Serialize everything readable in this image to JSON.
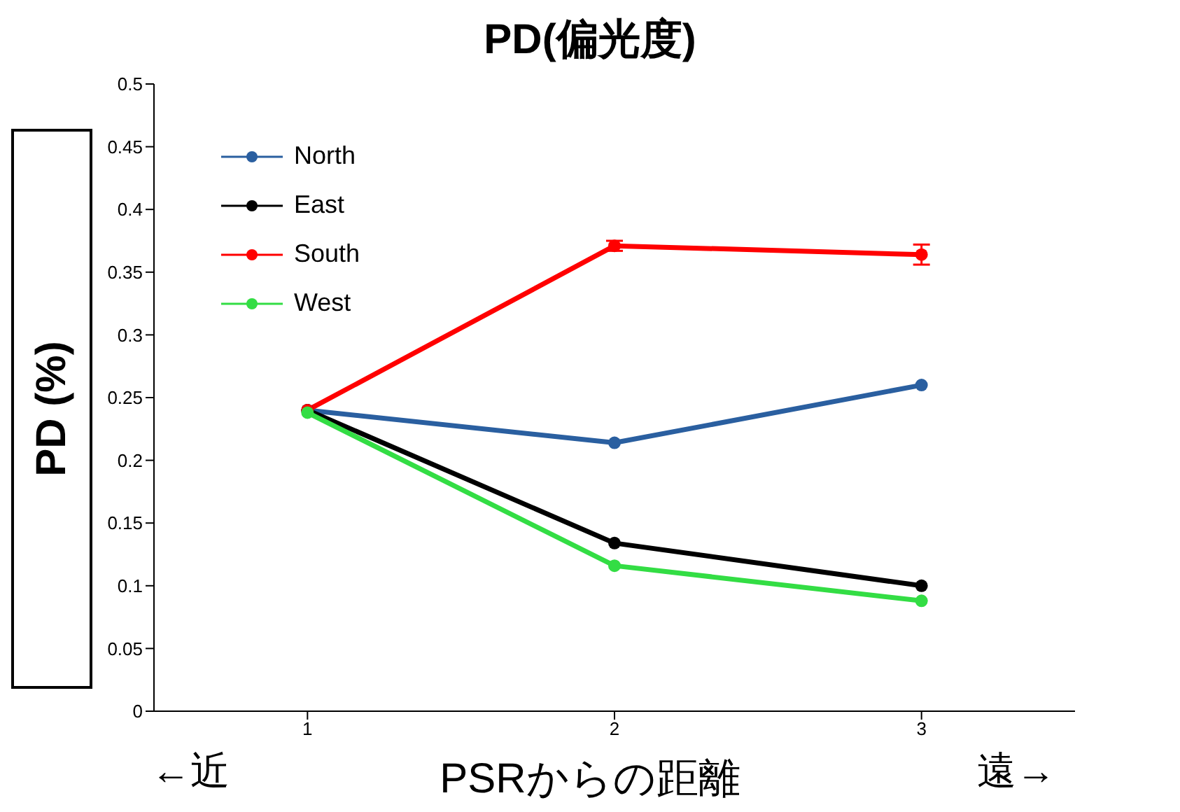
{
  "chart_data": {
    "type": "line",
    "title": "PD(偏光度)",
    "xlabel": "PSRからの距離",
    "ylabel": "PD (%)",
    "annotations": [
      "←近",
      "遠→"
    ],
    "x": [
      1,
      2,
      3
    ],
    "series": [
      {
        "name": "North",
        "color": "#2a5fa0",
        "values": [
          0.24,
          0.214,
          0.26
        ]
      },
      {
        "name": "East",
        "color": "#000000",
        "values": [
          0.24,
          0.134,
          0.1
        ]
      },
      {
        "name": "South",
        "color": "#ff0000",
        "values": [
          0.24,
          0.371,
          0.364
        ],
        "errors": [
          null,
          0.004,
          0.008
        ]
      },
      {
        "name": "West",
        "color": "#33dd44",
        "values": [
          0.238,
          0.116,
          0.088
        ]
      }
    ],
    "xlim": [
      0.5,
      3.5
    ],
    "xticks": [
      1,
      2,
      3
    ],
    "ylim": [
      0,
      0.5
    ],
    "yticks": [
      0,
      0.05,
      0.1,
      0.15,
      0.2,
      0.25,
      0.3,
      0.35,
      0.4,
      0.45,
      0.5
    ],
    "legend": "top left",
    "marker": "circle",
    "line_style": "solid"
  }
}
